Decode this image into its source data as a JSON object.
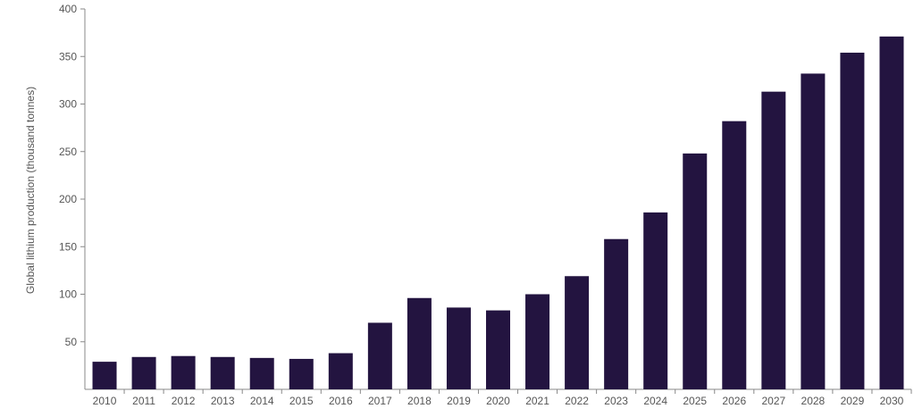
{
  "chart_data": {
    "type": "bar",
    "title": "",
    "xlabel": "",
    "ylabel": "Global lithium production (thousand tonnes)",
    "ylim": [
      0,
      400
    ],
    "yticks": [
      50,
      100,
      150,
      200,
      250,
      300,
      350,
      400
    ],
    "grid": false,
    "legend": "none",
    "bar_color": "#231440",
    "categories": [
      "2010",
      "2011",
      "2012",
      "2013",
      "2014",
      "2015",
      "2016",
      "2017",
      "2018",
      "2019",
      "2020",
      "2021",
      "2022",
      "2023",
      "2024",
      "2025",
      "2026",
      "2027",
      "2028",
      "2029",
      "2030"
    ],
    "values": [
      29,
      34,
      35,
      34,
      33,
      32,
      38,
      70,
      96,
      86,
      83,
      100,
      119,
      158,
      186,
      248,
      282,
      313,
      332,
      354,
      371
    ]
  }
}
